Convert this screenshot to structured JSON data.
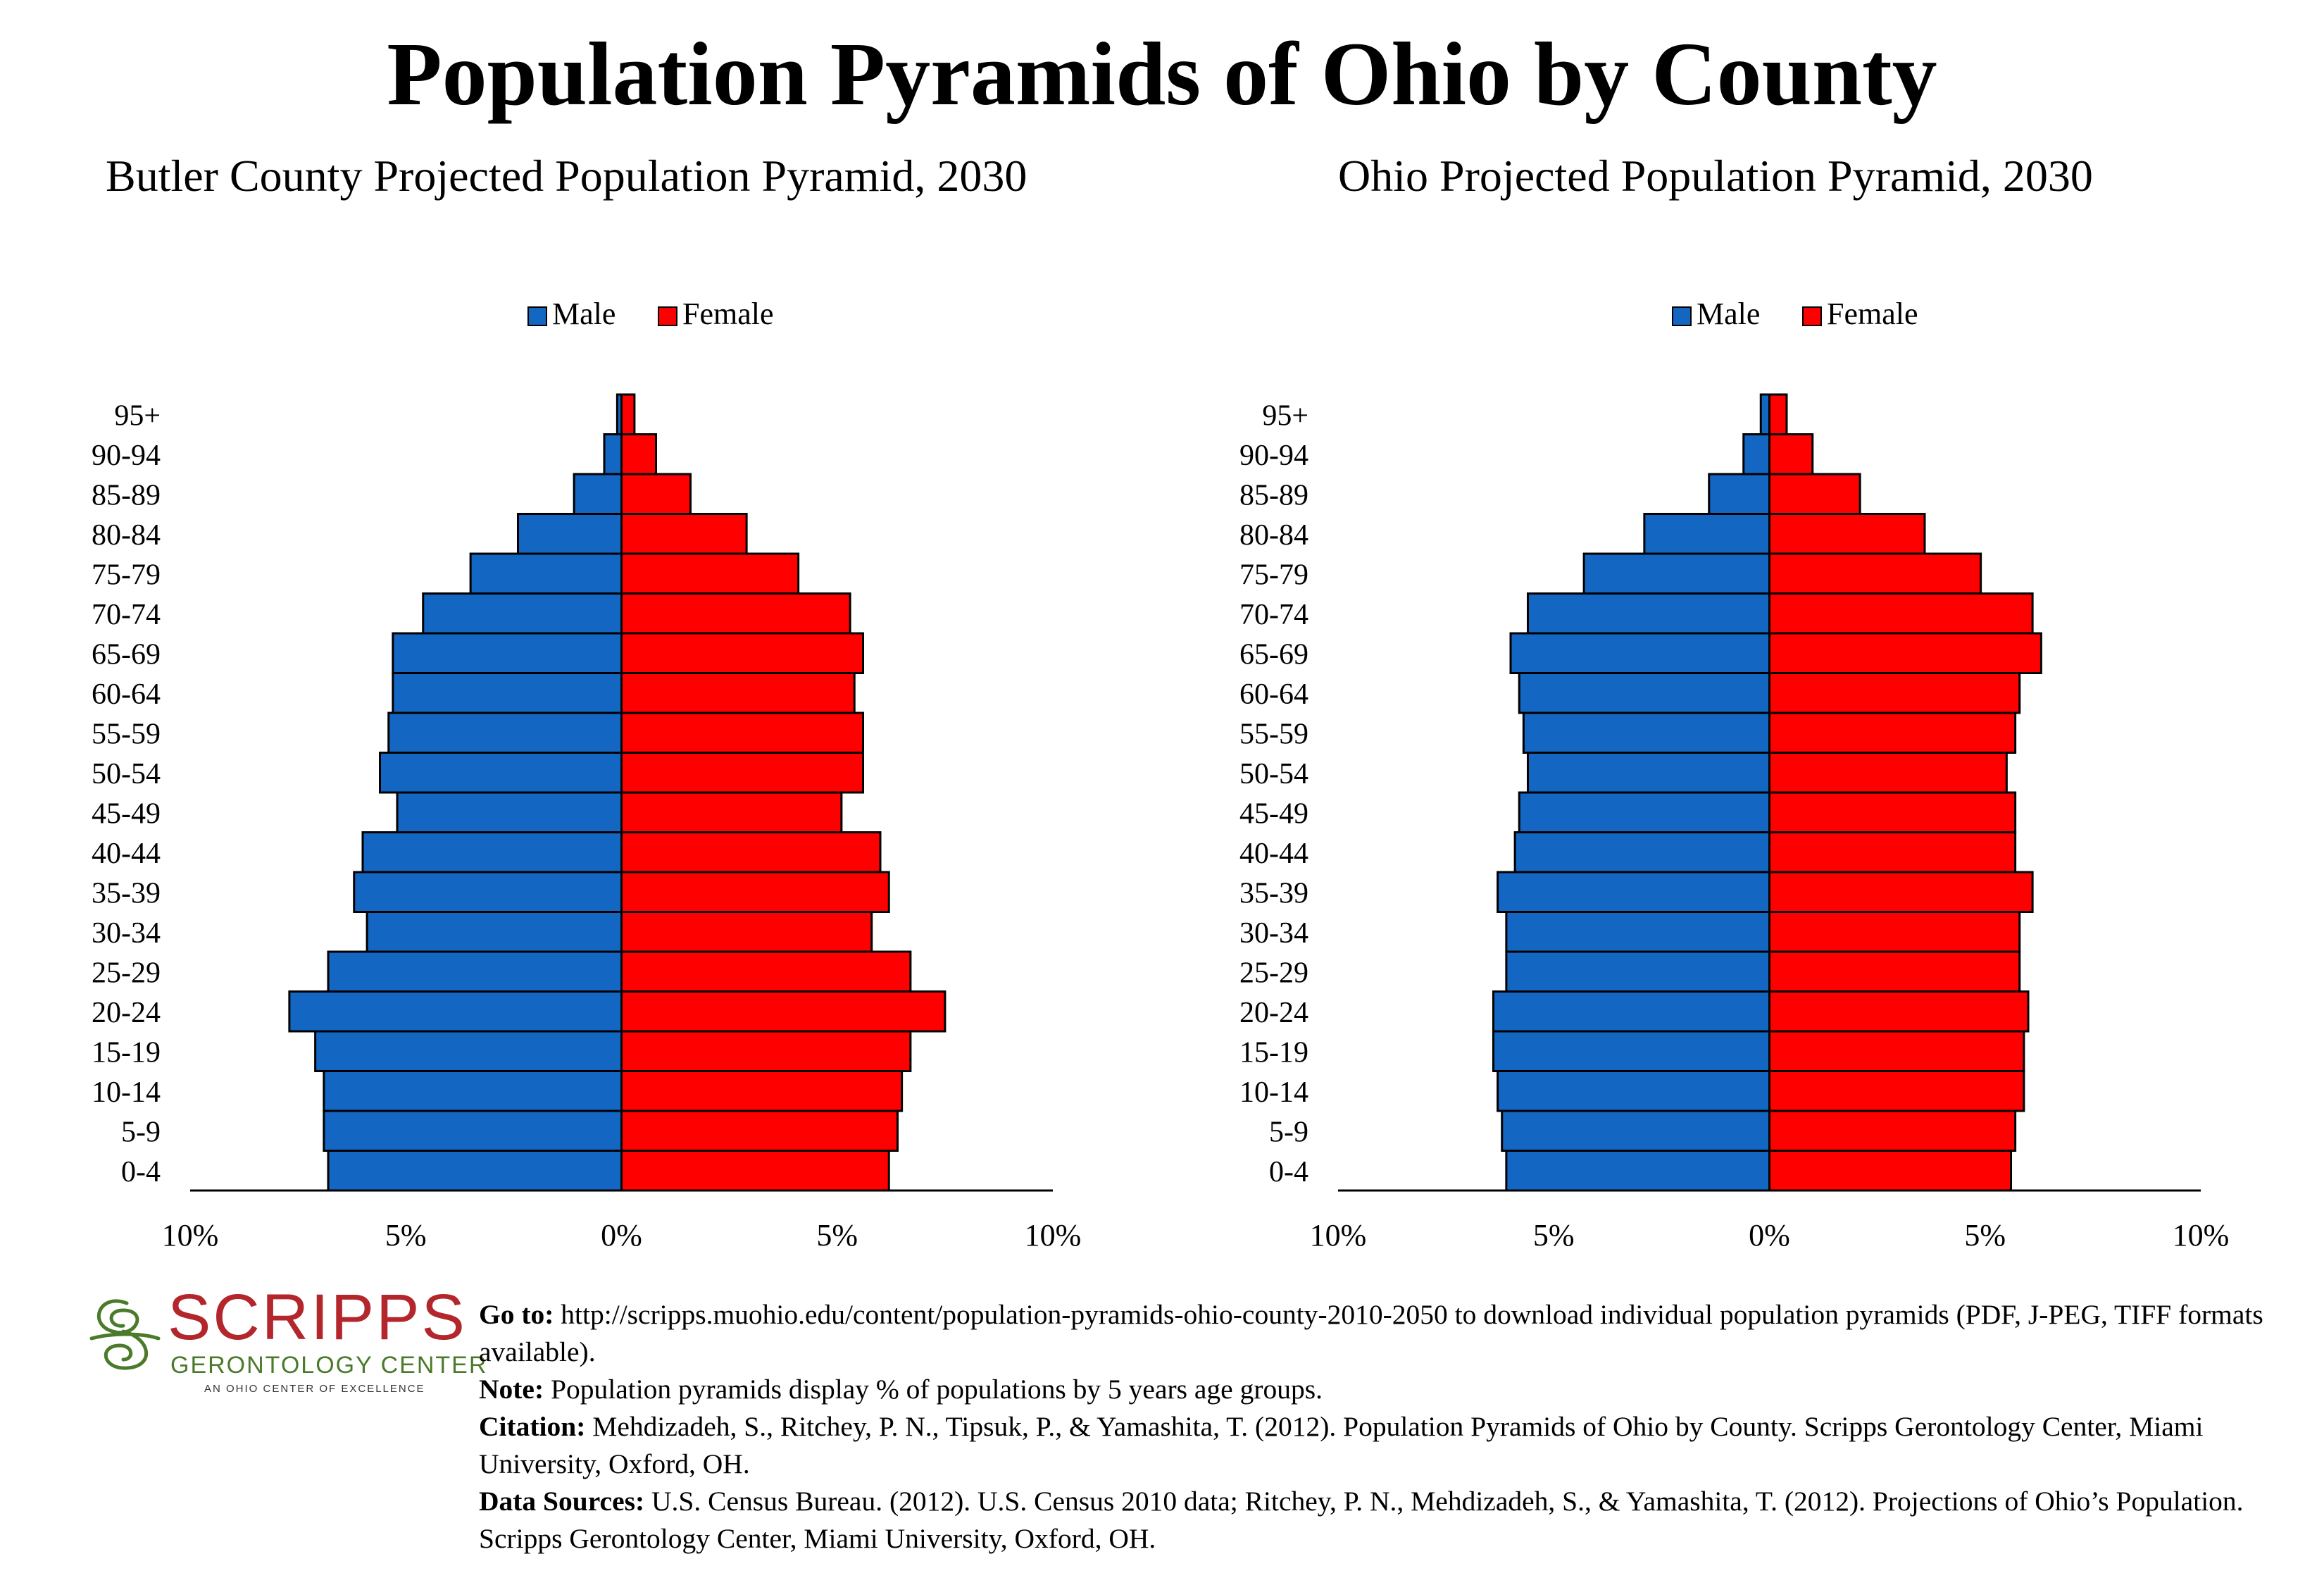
{
  "page": {
    "title": "Population Pyramids of Ohio by County"
  },
  "chart_data": [
    {
      "type": "bar",
      "title": "Butler County Projected Population Pyramid, 2030",
      "orientation": "horizontal-pyramid",
      "categories": [
        "0-4",
        "5-9",
        "10-14",
        "15-19",
        "20-24",
        "25-29",
        "30-34",
        "35-39",
        "40-44",
        "45-49",
        "50-54",
        "55-59",
        "60-64",
        "65-69",
        "70-74",
        "75-79",
        "80-84",
        "85-89",
        "90-94",
        "95+"
      ],
      "series": [
        {
          "name": "Male",
          "color": "#1366c2",
          "values": [
            6.8,
            6.9,
            6.9,
            7.1,
            7.7,
            6.8,
            5.9,
            6.2,
            6.0,
            5.2,
            5.6,
            5.4,
            5.3,
            5.3,
            4.6,
            3.5,
            2.4,
            1.1,
            0.4,
            0.1
          ]
        },
        {
          "name": "Female",
          "color": "#ff0000",
          "values": [
            6.2,
            6.4,
            6.5,
            6.7,
            7.5,
            6.7,
            5.8,
            6.2,
            6.0,
            5.1,
            5.6,
            5.6,
            5.4,
            5.6,
            5.3,
            4.1,
            2.9,
            1.6,
            0.8,
            0.3
          ]
        }
      ],
      "xlim": [
        -10,
        10
      ],
      "xticks": [
        "10%",
        "5%",
        "0%",
        "5%",
        "10%"
      ],
      "legend": "top-center",
      "grid": false
    },
    {
      "type": "bar",
      "title": "Ohio Projected Population Pyramid, 2030",
      "orientation": "horizontal-pyramid",
      "categories": [
        "0-4",
        "5-9",
        "10-14",
        "15-19",
        "20-24",
        "25-29",
        "30-34",
        "35-39",
        "40-44",
        "45-49",
        "50-54",
        "55-59",
        "60-64",
        "65-69",
        "70-74",
        "75-79",
        "80-84",
        "85-89",
        "90-94",
        "95+"
      ],
      "series": [
        {
          "name": "Male",
          "color": "#1366c2",
          "values": [
            6.1,
            6.2,
            6.3,
            6.4,
            6.4,
            6.1,
            6.1,
            6.3,
            5.9,
            5.8,
            5.6,
            5.7,
            5.8,
            6.0,
            5.6,
            4.3,
            2.9,
            1.4,
            0.6,
            0.2
          ]
        },
        {
          "name": "Female",
          "color": "#ff0000",
          "values": [
            5.6,
            5.7,
            5.9,
            5.9,
            6.0,
            5.8,
            5.8,
            6.1,
            5.7,
            5.7,
            5.5,
            5.7,
            5.8,
            6.3,
            6.1,
            4.9,
            3.6,
            2.1,
            1.0,
            0.4
          ]
        }
      ],
      "xlim": [
        -10,
        10
      ],
      "xticks": [
        "10%",
        "5%",
        "0%",
        "5%",
        "10%"
      ],
      "legend": "top-center",
      "grid": false
    }
  ],
  "logo": {
    "word": "SCRIPPS",
    "sub": "GERONTOLOGY CENTER",
    "tag": "AN OHIO CENTER OF EXCELLENCE"
  },
  "footer": {
    "goto_label": "Go to:",
    "goto_text": " http://scripps.muohio.edu/content/population-pyramids-ohio-county-2010-2050 to download individual population pyramids (PDF, J-PEG, TIFF formats available).",
    "note_label": "Note:",
    "note_text": " Population pyramids display % of populations by 5 years age groups.",
    "citation_label": "Citation:",
    "citation_text": " Mehdizadeh, S., Ritchey, P. N., Tipsuk, P., & Yamashita, T. (2012). Population Pyramids of Ohio by County. Scripps Gerontology Center, Miami University, Oxford, OH.",
    "sources_label": "Data Sources:",
    "sources_text": " U.S. Census Bureau. (2012). U.S. Census 2010 data; Ritchey, P. N., Mehdizadeh, S., & Yamashita, T. (2012). Projections of Ohio’s Population. Scripps Gerontology Center, Miami University, Oxford, OH."
  }
}
